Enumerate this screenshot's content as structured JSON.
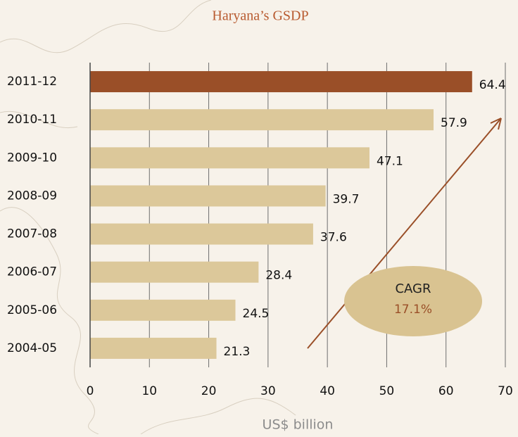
{
  "chart_data": {
    "type": "barh",
    "title": "Haryana’s GSDP",
    "categories": [
      "2011-12",
      "2010-11",
      "2009-10",
      "2008-09",
      "2007-08",
      "2006-07",
      "2005-06",
      "2004-05"
    ],
    "values": [
      64.4,
      57.9,
      47.1,
      39.7,
      37.6,
      28.4,
      24.5,
      21.3
    ],
    "colors": [
      "#9a4f28",
      "#dcc89a",
      "#dcc89a",
      "#dcc89a",
      "#dcc89a",
      "#dcc89a",
      "#dcc89a",
      "#dcc89a"
    ],
    "xlim": [
      0,
      70
    ],
    "xticks": [
      0,
      10,
      20,
      30,
      40,
      50,
      60,
      70
    ],
    "grid": true,
    "xlabel": "US$ billion",
    "annotation": [
      "CAGR",
      "17.1%"
    ]
  }
}
